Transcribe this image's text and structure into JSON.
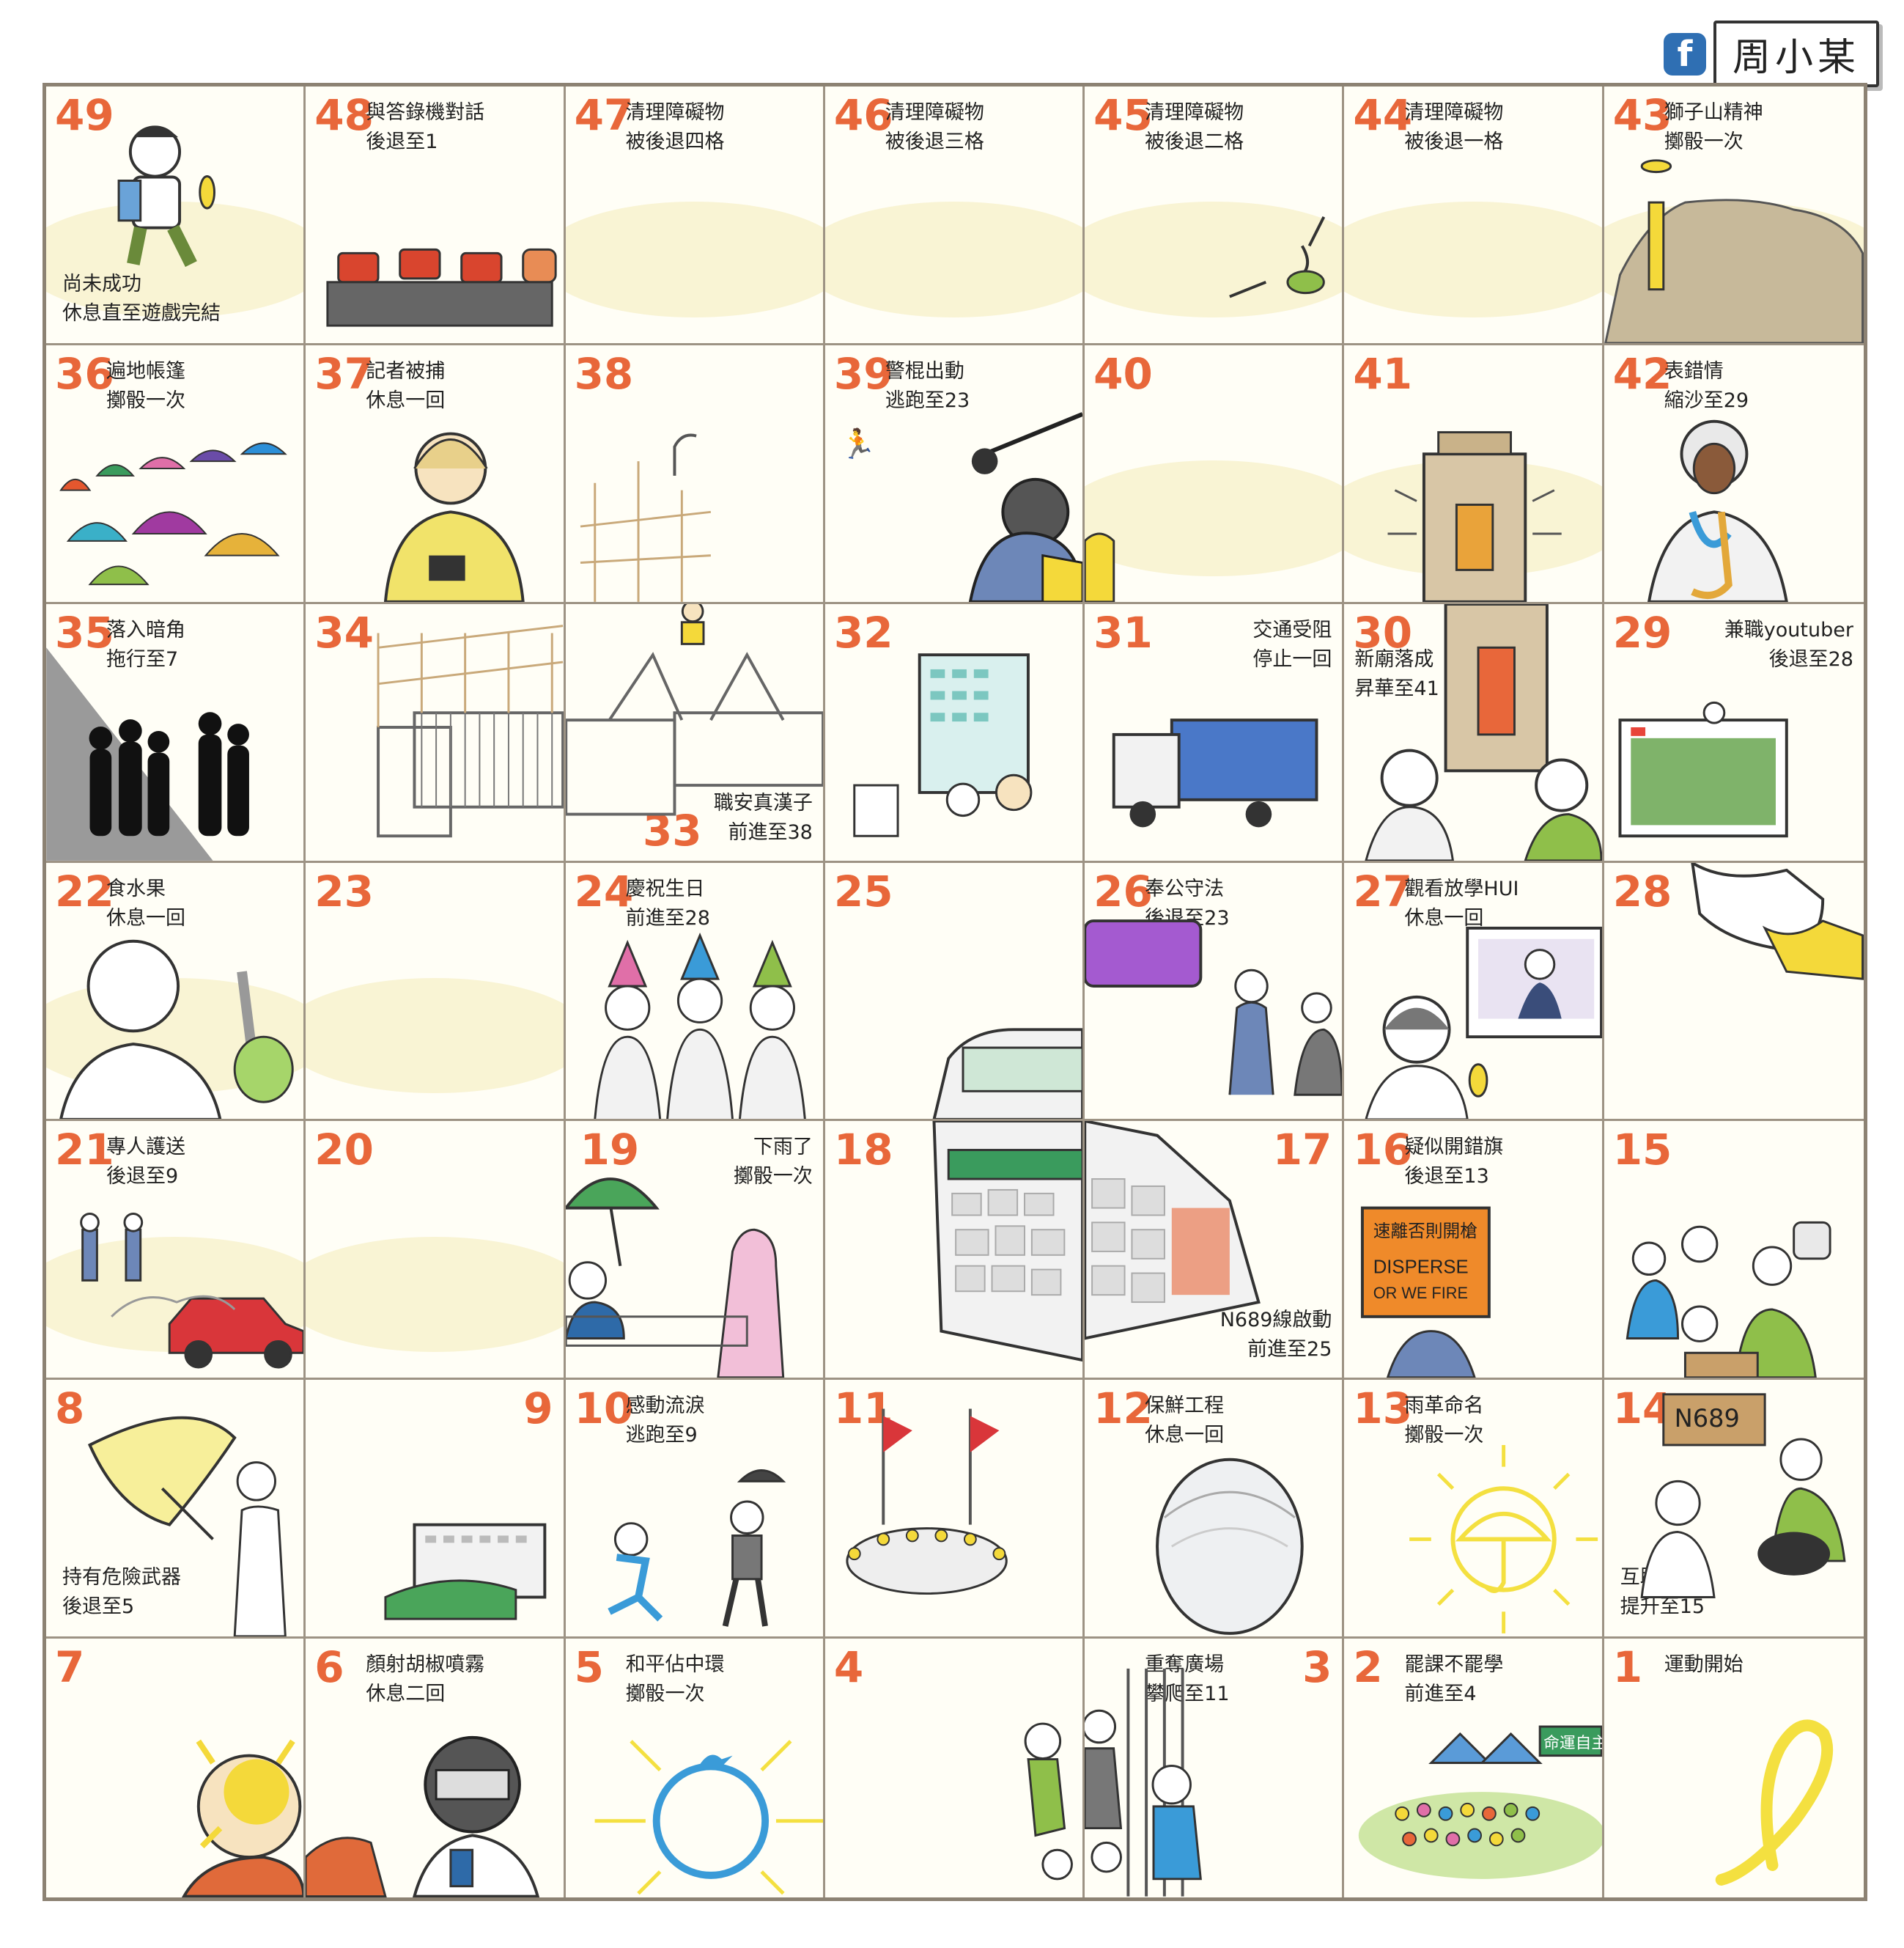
{
  "author": {
    "logo": "f",
    "name": "周小某"
  },
  "colors": {
    "number": "#e8673a",
    "grid": "#9d9384",
    "wash": "#f7f0c6",
    "umbrella_yellow": "#f4d93a"
  },
  "cells": {
    "49": {
      "label": "尚未成功\n休息直至遊戲完結",
      "icon": "boy-eating-banana-icon"
    },
    "48": {
      "label": "與答錄機對話\n後退至1",
      "icon": "answering-machine-heads-icon"
    },
    "47": {
      "label": "清理障礙物\n被後退四格",
      "icon": "empty-street-icon"
    },
    "46": {
      "label": "清理障礙物\n被後退三格",
      "icon": "empty-street-icon"
    },
    "45": {
      "label": "清理障礙物\n被後退二格",
      "icon": "broken-umbrella-icon"
    },
    "44": {
      "label": "清理障礙物\n被後退一格",
      "icon": "empty-street-icon"
    },
    "43": {
      "label": "獅子山精神\n擲骰一次",
      "icon": "lion-rock-banner-icon"
    },
    "36": {
      "label": "遍地帳篷\n擲骰一次",
      "icon": "tents-icon"
    },
    "37": {
      "label": "記者被捕\n休息一回",
      "icon": "journalist-icon"
    },
    "38": {
      "label": "",
      "icon": "scaffold-icon"
    },
    "39": {
      "label": "警棍出動\n逃跑至23",
      "icon": "police-baton-icon"
    },
    "40": {
      "label": "",
      "icon": "police-baton-icon"
    },
    "41": {
      "label": "",
      "icon": "shrine-icon"
    },
    "42": {
      "label": "表錯情\n縮沙至29",
      "icon": "saxophone-judge-icon"
    },
    "35": {
      "label": "落入暗角\n拖行至7",
      "icon": "dark-corner-icon"
    },
    "34": {
      "label": "",
      "icon": "barricade-icon"
    },
    "33": {
      "label": "職安真漢子\n前進至38",
      "icon": "barricade-ladder-icon"
    },
    "32": {
      "label": "",
      "icon": "building-protest-icon"
    },
    "31": {
      "label": "交通受阻\n停止一回",
      "icon": "truck-icon"
    },
    "30": {
      "label": "新廟落成\n昇華至41",
      "icon": "shrine-icon"
    },
    "29": {
      "label": "兼職youtuber\n後退至28",
      "icon": "youtube-screen-icon"
    },
    "22": {
      "label": "食水果\n休息一回",
      "icon": "durian-knife-icon"
    },
    "23": {
      "label": "",
      "icon": "blank-icon"
    },
    "24": {
      "label": "慶祝生日\n前進至28",
      "icon": "party-hats-icon"
    },
    "25": {
      "label": "",
      "icon": "blank-icon"
    },
    "26": {
      "label": "奉公守法\n後退至23",
      "icon": "police-arrest-icon"
    },
    "27": {
      "label": "觀看放學HUI\n休息一回",
      "icon": "tv-police-icon"
    },
    "28": {
      "label": "",
      "icon": "worried-man-icon"
    },
    "21": {
      "label": "專人護送\n後退至9",
      "icon": "taxi-police-icon"
    },
    "20": {
      "label": "",
      "icon": "blank-icon"
    },
    "19": {
      "label": "下雨了\n擲骰一次",
      "icon": "green-umbrella-icon"
    },
    "18": {
      "label": "",
      "icon": "bus-icon"
    },
    "17": {
      "label": "N689線啟動\n前進至25",
      "icon": "bus-icon"
    },
    "16": {
      "label": "疑似開錯旗\n後退至13",
      "icon": "disperse-flag-icon"
    },
    "15": {
      "label": "",
      "icon": "helpers-icon"
    },
    "8": {
      "label": "持有危險武器\n後退至5",
      "icon": "yellow-umbrella-icon"
    },
    "9": {
      "label": "",
      "icon": "government-building-icon"
    },
    "10": {
      "label": "感動流淚\n逃跑至9",
      "icon": "running-man-icon"
    },
    "11": {
      "label": "",
      "icon": "flag-crowd-icon"
    },
    "12": {
      "label": "保鮮工程\n休息一回",
      "icon": "cling-wrap-face-icon"
    },
    "13": {
      "label": "雨革命名\n擲骰一次",
      "icon": "sun-umbrella-icon"
    },
    "14": {
      "label": "互助精神\n提升至15",
      "icon": "helpers-icon"
    },
    "7": {
      "label": "",
      "icon": "pepper-spray-icon"
    },
    "6": {
      "label": "顏射胡椒噴霧\n休息二回",
      "icon": "pepper-spray-icon"
    },
    "5": {
      "label": "和平佔中環\n擲骰一次",
      "icon": "ring-bird-icon"
    },
    "4": {
      "label": "",
      "icon": "climbing-fence-icon"
    },
    "3": {
      "label": "重奪廣場\n攀爬至11",
      "icon": "climbing-fence-icon"
    },
    "2": {
      "label": "罷課不罷學\n前進至4",
      "icon": "class-boycott-icon"
    },
    "1": {
      "label": "運動開始",
      "icon": "yellow-ribbon-icon"
    }
  },
  "signs": {
    "tents_note": "",
    "cell14_sign": "N689\n回收",
    "cell16_sign": "DISPERSE\nOR WE FIRE",
    "cell16_sign_top": "速離否則開槍",
    "cell2_sign": "命運自主",
    "cell17_bus": "N689"
  }
}
